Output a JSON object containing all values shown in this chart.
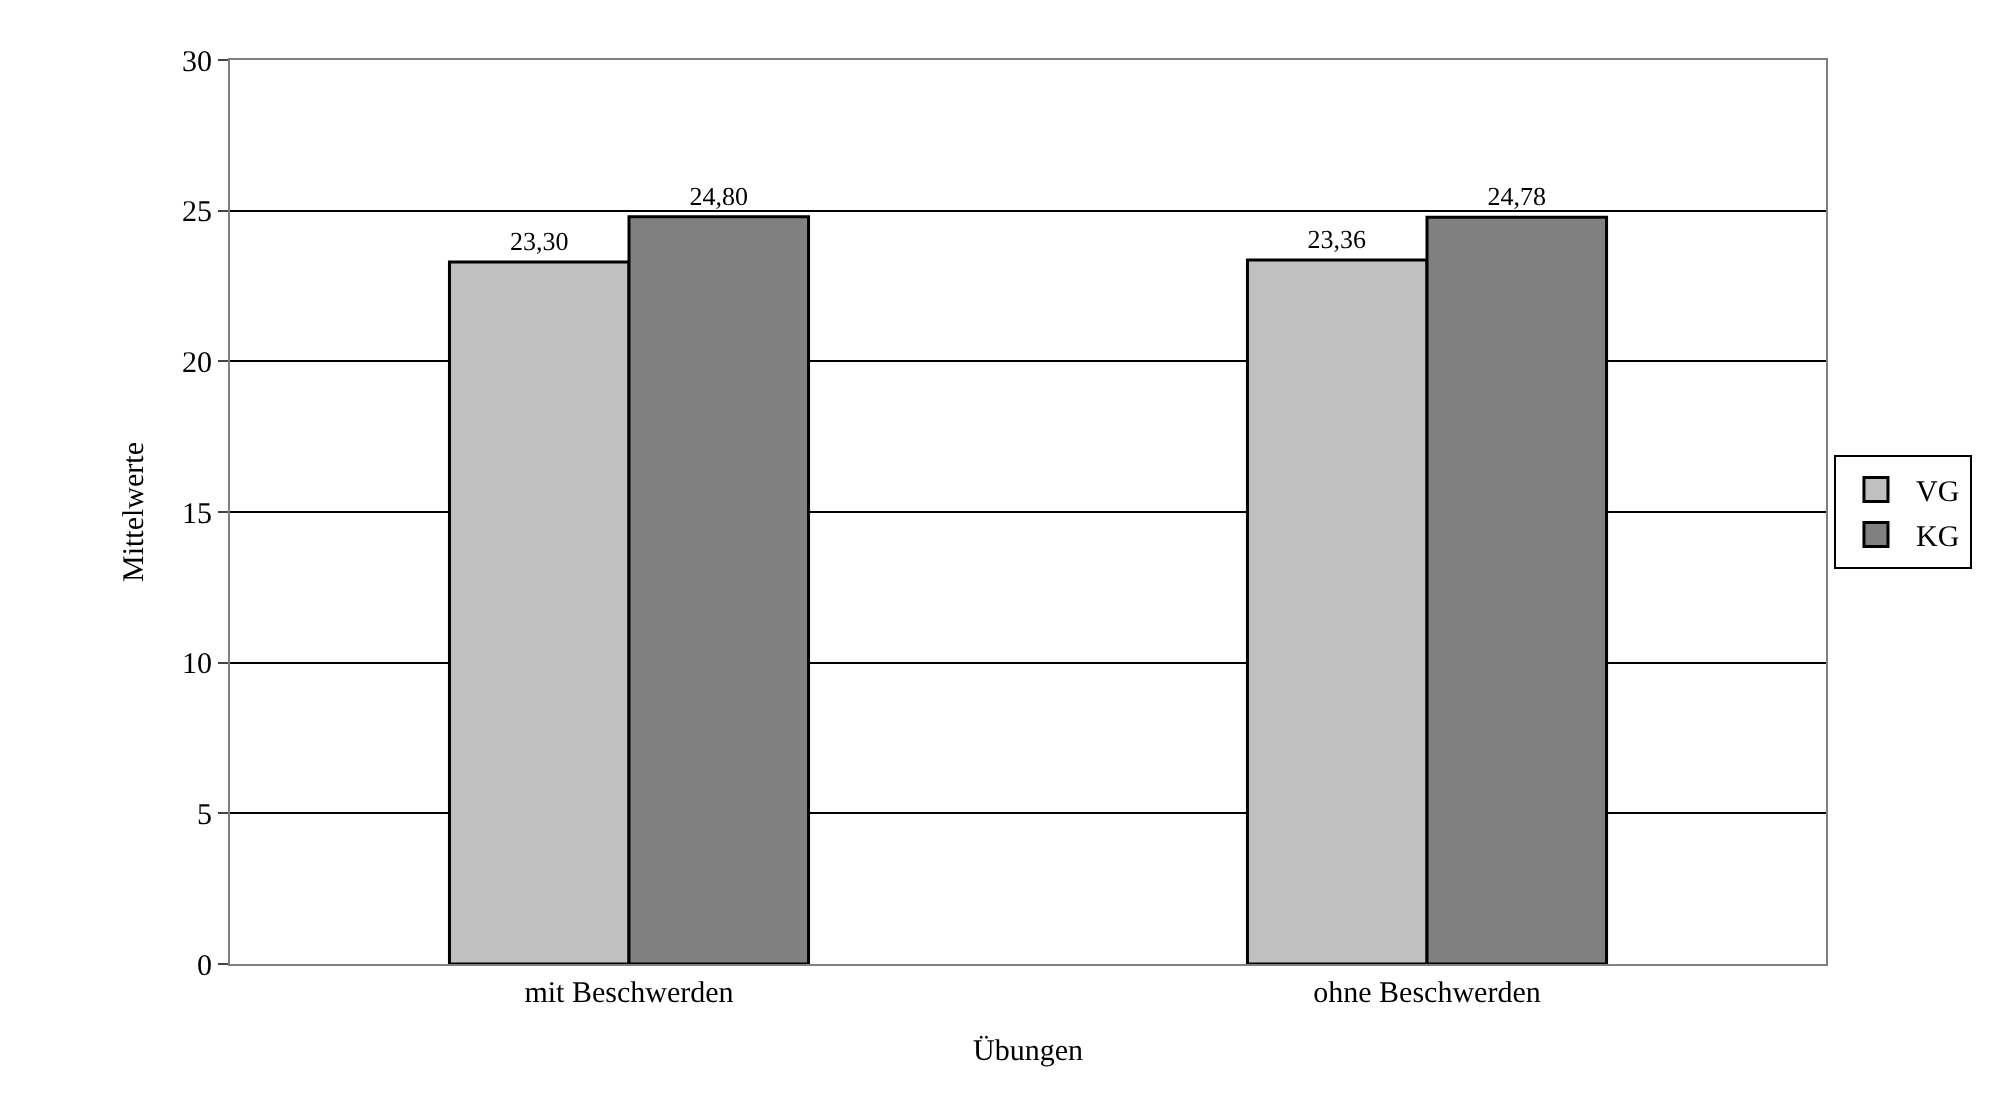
{
  "chart_data": {
    "type": "bar",
    "xlabel": "Übungen",
    "ylabel": "Mittelwerte",
    "categories": [
      "mit Beschwerden",
      "ohne Beschwerden"
    ],
    "series": [
      {
        "name": "VG",
        "color": "#c0c0c0",
        "values": [
          23.3,
          23.36
        ],
        "value_labels": [
          "23,30",
          "23,36"
        ]
      },
      {
        "name": "KG",
        "color": "#808080",
        "values": [
          24.8,
          24.78
        ],
        "value_labels": [
          "24,80",
          "24,78"
        ]
      }
    ],
    "ylim": [
      0,
      30
    ],
    "yticks": [
      0,
      5,
      10,
      15,
      20,
      25,
      30
    ],
    "grid": "y",
    "legend": "right"
  }
}
